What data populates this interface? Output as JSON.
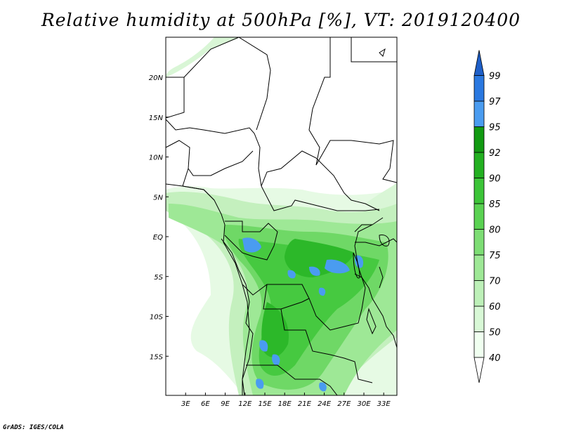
{
  "title": "Relative humidity at 500hPa [%], VT: 2019120400",
  "credit": "GrADS: IGES/COLA",
  "map": {
    "lat_labels": [
      {
        "lat": 20,
        "label": "20N"
      },
      {
        "lat": 15,
        "label": "15N"
      },
      {
        "lat": 10,
        "label": "10N"
      },
      {
        "lat": 5,
        "label": "5N"
      },
      {
        "lat": 0,
        "label": "EQ"
      },
      {
        "lat": -5,
        "label": "5S"
      },
      {
        "lat": -10,
        "label": "10S"
      },
      {
        "lat": -15,
        "label": "15S"
      }
    ],
    "lon_labels": [
      {
        "lon": 3,
        "label": "3E"
      },
      {
        "lon": 6,
        "label": "6E"
      },
      {
        "lon": 9,
        "label": "9E"
      },
      {
        "lon": 12,
        "label": "12E"
      },
      {
        "lon": 15,
        "label": "15E"
      },
      {
        "lon": 18,
        "label": "18E"
      },
      {
        "lon": 21,
        "label": "21E"
      },
      {
        "lon": 24,
        "label": "24E"
      },
      {
        "lon": 27,
        "label": "27E"
      },
      {
        "lon": 30,
        "label": "30E"
      },
      {
        "lon": 33,
        "label": "33E"
      }
    ],
    "lon_range": [
      0,
      35
    ],
    "lat_range": [
      -20,
      25
    ]
  },
  "colorbar": {
    "levels": [
      "40",
      "50",
      "60",
      "70",
      "75",
      "80",
      "85",
      "90",
      "92",
      "95",
      "97",
      "99"
    ],
    "colors": [
      "#f0fff0",
      "#d8f8d6",
      "#bdf0b8",
      "#9ee896",
      "#7ddd74",
      "#5ad252",
      "#3cc438",
      "#23b021",
      "#129a12",
      "#4a9cf0",
      "#2a78e0",
      "#1e5fc8"
    ]
  }
}
